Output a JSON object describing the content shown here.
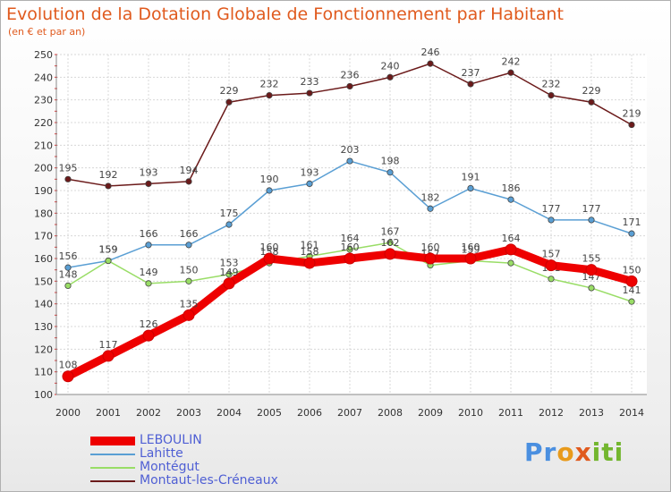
{
  "title": "Evolution de la Dotation Globale de Fonctionnement par Habitant",
  "subtitle": "(en € et par an)",
  "logo": "Proxiti",
  "chart_data": {
    "type": "line",
    "x": [
      2000,
      2001,
      2002,
      2003,
      2004,
      2005,
      2006,
      2007,
      2008,
      2009,
      2010,
      2011,
      2012,
      2013,
      2014
    ],
    "ylim": [
      100,
      250
    ],
    "yticks": [
      100,
      110,
      120,
      130,
      140,
      150,
      160,
      170,
      180,
      190,
      200,
      210,
      220,
      230,
      240,
      250
    ],
    "grid": true,
    "legend": "bottom-left",
    "series": [
      {
        "name": "Montaut-les-Créneaux",
        "color": "#6b1a1a",
        "values": [
          195,
          192,
          193,
          194,
          229,
          232,
          233,
          236,
          240,
          246,
          237,
          242,
          232,
          229,
          219
        ]
      },
      {
        "name": "Lahitte",
        "color": "#5a9fd4",
        "values": [
          156,
          159,
          166,
          166,
          175,
          190,
          193,
          203,
          198,
          182,
          191,
          186,
          177,
          177,
          171
        ]
      },
      {
        "name": "Montégut",
        "color": "#99dd66",
        "values": [
          148,
          159,
          149,
          150,
          153,
          158,
          161,
          164,
          167,
          157,
          159,
          158,
          151,
          147,
          141
        ]
      },
      {
        "name": "LEBOULIN",
        "color": "#ee0000",
        "values": [
          108,
          117,
          126,
          135,
          149,
          160,
          158,
          160,
          162,
          160,
          160,
          164,
          157,
          155,
          150
        ]
      }
    ]
  },
  "legend_items": [
    {
      "name": "LEBOULIN",
      "color": "#ee0000",
      "width": 10
    },
    {
      "name": "Lahitte",
      "color": "#5a9fd4",
      "width": 2
    },
    {
      "name": "Montégut",
      "color": "#99dd66",
      "width": 2
    },
    {
      "name": "Montaut-les-Créneaux",
      "color": "#6b1a1a",
      "width": 2
    }
  ]
}
